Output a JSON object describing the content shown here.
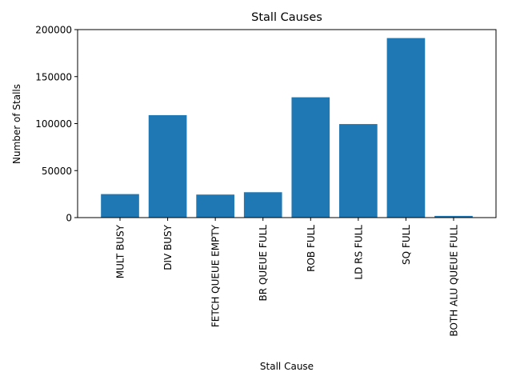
{
  "chart_data": {
    "type": "bar",
    "title": "Stall Causes",
    "xlabel": "Stall Cause",
    "ylabel": "Number of Stalls",
    "categories": [
      "MULT BUSY",
      "DIV BUSY",
      "FETCH QUEUE EMPTY",
      "BR QUEUE FULL",
      "ROB FULL",
      "LD RS FULL",
      "SQ FULL",
      "BOTH ALU QUEUE FULL"
    ],
    "values": [
      25000,
      109000,
      24500,
      27000,
      128000,
      99500,
      191000,
      1800
    ],
    "ylim": [
      0,
      200000
    ],
    "yticks": [
      0,
      50000,
      100000,
      150000,
      200000
    ],
    "bar_color": "#1f77b4",
    "grid": false,
    "legend": "none"
  }
}
